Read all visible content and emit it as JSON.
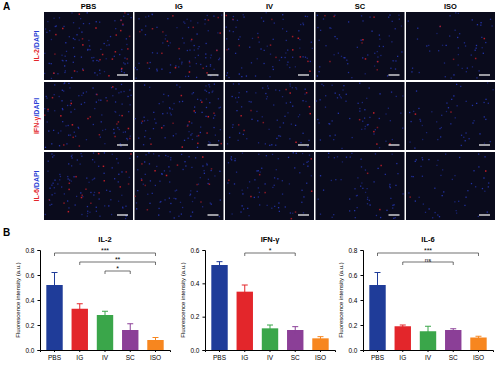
{
  "figure": {
    "panel_a": {
      "label": "A",
      "columns": [
        "PBS",
        "IG",
        "IV",
        "SC",
        "ISO"
      ],
      "rows": [
        {
          "marker": "IL-2",
          "stain": "/DAPI"
        },
        {
          "marker": "IFN-γ",
          "stain": "/DAPI"
        },
        {
          "marker": "IL-6",
          "stain": "/DAPI"
        }
      ]
    },
    "panel_b": {
      "label": "B"
    }
  },
  "chart_data": [
    {
      "type": "bar",
      "title": "IL-2",
      "y_label": "Fluorescence intensity (a.u.)",
      "categories": [
        "PBS",
        "IG",
        "IV",
        "SC",
        "ISO"
      ],
      "values": [
        0.52,
        0.33,
        0.28,
        0.16,
        0.08
      ],
      "errors": [
        0.1,
        0.04,
        0.03,
        0.05,
        0.02
      ],
      "colors": [
        "#1f3c99",
        "#e3262b",
        "#3aa64a",
        "#8b3f97",
        "#f7861f"
      ],
      "ylim": [
        0,
        0.8
      ],
      "yticks": [
        {
          "value": 0,
          "label": "0.0"
        },
        0.2,
        0.4,
        0.6,
        0.8
      ],
      "annotations": [
        {
          "text": "***",
          "from": "PBS",
          "to": "ISO"
        },
        {
          "text": "**",
          "from": "IG",
          "to": "ISO"
        },
        {
          "text": "*",
          "from": "IV",
          "to": "SC"
        }
      ]
    },
    {
      "type": "bar",
      "title": "IFN-γ",
      "y_label": "Fluorescence intensity (a.u.)",
      "categories": [
        "PBS",
        "IG",
        "IV",
        "SC",
        "ISO"
      ],
      "values": [
        0.51,
        0.35,
        0.13,
        0.12,
        0.07
      ],
      "errors": [
        0.02,
        0.04,
        0.02,
        0.02,
        0.01
      ],
      "colors": [
        "#1f3c99",
        "#e3262b",
        "#3aa64a",
        "#8b3f97",
        "#f7861f"
      ],
      "ylim": [
        0,
        0.6
      ],
      "yticks": [
        {
          "value": 0,
          "label": "0.0"
        },
        0.2,
        0.4,
        0.6
      ],
      "annotations": [
        {
          "text": "*",
          "from": "IG",
          "to": "SC"
        }
      ]
    },
    {
      "type": "bar",
      "title": "IL-6",
      "y_label": "Fluorescence intensity (a.u.)",
      "categories": [
        "PBS",
        "IG",
        "IV",
        "SC",
        "ISO"
      ],
      "values": [
        0.52,
        0.19,
        0.15,
        0.16,
        0.1
      ],
      "errors": [
        0.1,
        0.01,
        0.04,
        0.01,
        0.01
      ],
      "colors": [
        "#1f3c99",
        "#e3262b",
        "#3aa64a",
        "#8b3f97",
        "#f7861f"
      ],
      "ylim": [
        0,
        0.8
      ],
      "yticks": [
        {
          "value": 0,
          "label": "0.0"
        },
        0.2,
        0.4,
        0.6,
        0.8
      ],
      "annotations": [
        {
          "text": "***",
          "from": "PBS",
          "to": "ISO"
        },
        {
          "text": "ns",
          "from": "IG",
          "to": "SC"
        }
      ]
    }
  ]
}
